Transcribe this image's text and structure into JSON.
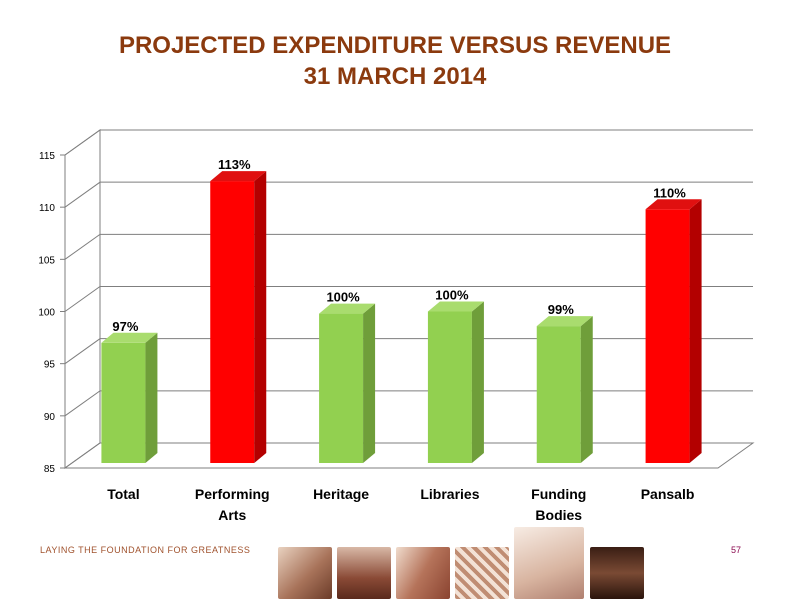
{
  "title": {
    "line1": "PROJECTED EXPENDITURE VERSUS REVENUE",
    "line2": "31 MARCH 2014"
  },
  "footer": {
    "tagline": "LAYING THE FOUNDATION FOR GREATNESS",
    "page_number": "57",
    "images": [
      "hands-image",
      "dancers-image",
      "film-reel-image",
      "woven-basket-image",
      "ballet-shoes-image",
      "saxophone-image"
    ]
  },
  "colors": {
    "title": "#8B3A0E",
    "bar_green": "#92D050",
    "bar_red": "#FF0000",
    "grid": "#7f7f7f"
  },
  "chart_data": {
    "type": "bar",
    "categories": [
      "Total",
      "Performing Arts",
      "Heritage",
      "Libraries",
      "Funding Bodies",
      "Pansalb"
    ],
    "category_lines": [
      [
        "Total"
      ],
      [
        "Performing",
        "Arts"
      ],
      [
        "Heritage"
      ],
      [
        "Libraries"
      ],
      [
        "Funding",
        "Bodies"
      ],
      [
        "Pansalb"
      ]
    ],
    "values": [
      97,
      112.5,
      99.8,
      100,
      98.6,
      109.8
    ],
    "data_labels": [
      "97%",
      "113%",
      "100%",
      "100%",
      "99%",
      "110%"
    ],
    "bar_colors": [
      "green",
      "red",
      "green",
      "green",
      "green",
      "red"
    ],
    "ylim": [
      85,
      115
    ],
    "yticks": [
      "85",
      "90",
      "95",
      "100",
      "105",
      "110",
      "115"
    ],
    "grid": true,
    "three_d": true
  }
}
